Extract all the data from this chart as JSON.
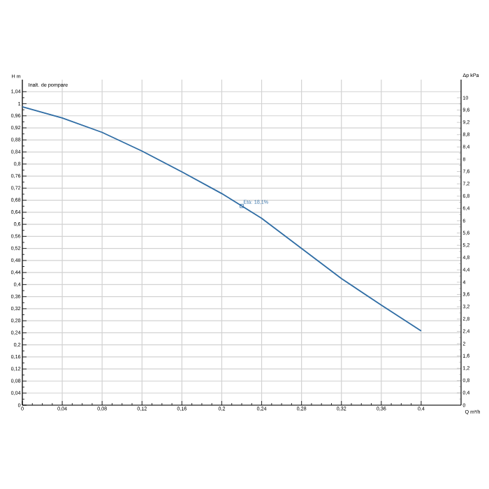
{
  "chart_data": {
    "type": "line",
    "xlabel": "Q m³/h",
    "ylabel": "H m",
    "y2label": "Δp kPa",
    "annotations": [
      "Inalt. de pompare",
      {
        "text": "Eta: 18,1%",
        "x": 0.22,
        "y": 0.661
      }
    ],
    "x": [
      0,
      0.04,
      0.08,
      0.12,
      0.16,
      0.2,
      0.22,
      0.24,
      0.28,
      0.32,
      0.36,
      0.4
    ],
    "series": [
      {
        "color": "#2e6ca4",
        "values": [
          0.99,
          0.953,
          0.905,
          0.843,
          0.774,
          0.702,
          0.661,
          0.62,
          0.52,
          0.42,
          0.332,
          0.246
        ]
      }
    ],
    "marker": "none",
    "line_style": "solid",
    "grid": true,
    "xlim": [
      0,
      0.44
    ],
    "ylim": [
      0,
      1.08
    ],
    "y2lim": [
      0,
      10.59
    ],
    "xticks": [
      0,
      {
        "value": 0.04,
        "label": "0,04"
      },
      {
        "value": 0.08,
        "label": "0,08"
      },
      {
        "value": 0.12,
        "label": "0,12"
      },
      {
        "value": 0.16,
        "label": "0,16"
      },
      {
        "value": 0.2,
        "label": "0,2"
      },
      {
        "value": 0.24,
        "label": "0,24"
      },
      {
        "value": 0.28,
        "label": "0,28"
      },
      {
        "value": 0.32,
        "label": "0,32"
      },
      {
        "value": 0.36,
        "label": "0,36"
      },
      {
        "value": 0.4,
        "label": "0,4"
      }
    ],
    "yticks": [
      0,
      {
        "value": 0.04,
        "label": "0,04"
      },
      {
        "value": 0.08,
        "label": "0,08"
      },
      {
        "value": 0.12,
        "label": "0,12"
      },
      {
        "value": 0.16,
        "label": "0,16"
      },
      {
        "value": 0.2,
        "label": "0,2"
      },
      {
        "value": 0.24,
        "label": "0,24"
      },
      {
        "value": 0.28,
        "label": "0,28"
      },
      {
        "value": 0.32,
        "label": "0,32"
      },
      {
        "value": 0.36,
        "label": "0,36"
      },
      {
        "value": 0.4,
        "label": "0,4"
      },
      {
        "value": 0.44,
        "label": "0,44"
      },
      {
        "value": 0.48,
        "label": "0,48"
      },
      {
        "value": 0.52,
        "label": "0,52"
      },
      {
        "value": 0.56,
        "label": "0,56"
      },
      {
        "value": 0.6,
        "label": "0,6"
      },
      {
        "value": 0.64,
        "label": "0,64"
      },
      {
        "value": 0.68,
        "label": "0,68"
      },
      {
        "value": 0.72,
        "label": "0,72"
      },
      {
        "value": 0.76,
        "label": "0,76"
      },
      {
        "value": 0.8,
        "label": "0,8"
      },
      {
        "value": 0.84,
        "label": "0,84"
      },
      {
        "value": 0.88,
        "label": "0,88"
      },
      {
        "value": 0.92,
        "label": "0,92"
      },
      {
        "value": 0.96,
        "label": "0,96"
      },
      1,
      {
        "value": 1.04,
        "label": "1,04"
      }
    ],
    "y2ticks": [
      0,
      {
        "value": 0.4,
        "label": "0,4"
      },
      {
        "value": 0.8,
        "label": "0,8"
      },
      {
        "value": 1.2,
        "label": "1,2"
      },
      {
        "value": 1.6,
        "label": "1,6"
      },
      2,
      {
        "value": 2.4,
        "label": "2,4"
      },
      {
        "value": 2.8,
        "label": "2,8"
      },
      {
        "value": 3.2,
        "label": "3,2"
      },
      {
        "value": 3.6,
        "label": "3,6"
      },
      4,
      {
        "value": 4.4,
        "label": "4,4"
      },
      {
        "value": 4.8,
        "label": "4,8"
      },
      {
        "value": 5.2,
        "label": "5,2"
      },
      {
        "value": 5.6,
        "label": "5,6"
      },
      6,
      {
        "value": 6.4,
        "label": "6,4"
      },
      {
        "value": 6.8,
        "label": "6,8"
      },
      {
        "value": 7.2,
        "label": "7,2"
      },
      {
        "value": 7.6,
        "label": "7,6"
      },
      8,
      {
        "value": 8.4,
        "label": "8,4"
      },
      {
        "value": 8.8,
        "label": "8,8"
      },
      {
        "value": 9.2,
        "label": "9,2"
      },
      {
        "value": 9.6,
        "label": "9,6"
      },
      10
    ]
  }
}
